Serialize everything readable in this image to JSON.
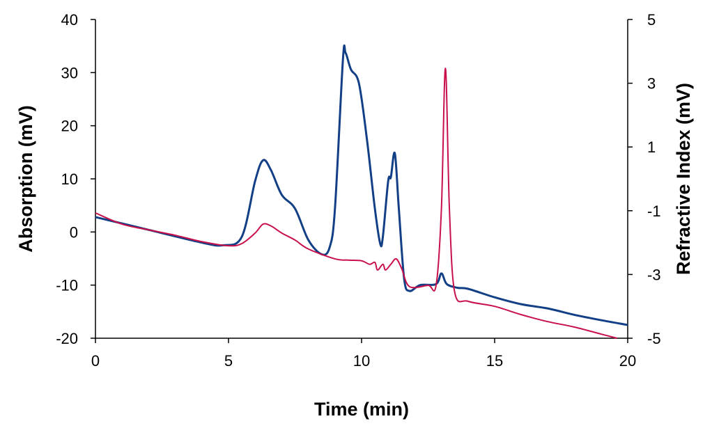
{
  "chart_data": {
    "type": "line",
    "title": "",
    "xlabel": "Time (min)",
    "ylabel": "Absorption (mV)",
    "y2label": "Refractive Index (mV)",
    "xlim": [
      0,
      20
    ],
    "ylim": [
      -20,
      40
    ],
    "y2lim": [
      -5,
      5
    ],
    "xticks": [
      0,
      5,
      10,
      15,
      20
    ],
    "yticks": [
      -20,
      -10,
      0,
      10,
      20,
      30,
      40
    ],
    "y2ticks": [
      -5,
      -3,
      -1,
      1,
      3,
      5
    ],
    "grid": false,
    "legend": "none",
    "series": [
      {
        "axis": "left",
        "color": "#123f85",
        "x": [
          0,
          2,
          4,
          4.8,
          5.5,
          6,
          6.3,
          6.6,
          7,
          7.5,
          8,
          8.5,
          8.8,
          9,
          9.3,
          9.4,
          9.6,
          9.9,
          10.2,
          10.5,
          10.7,
          10.8,
          11.0,
          11.1,
          11.25,
          11.4,
          11.6,
          11.8,
          12.2,
          12.8,
          13.0,
          13.2,
          13.6,
          14,
          15,
          16,
          17,
          18,
          19,
          20
        ],
        "y": [
          2.8,
          0.4,
          -2,
          -2.5,
          -0.9,
          9.6,
          13.5,
          11.6,
          7,
          4.4,
          -1.5,
          -4.2,
          -2.9,
          4.4,
          32.5,
          33.7,
          30.6,
          28,
          17.5,
          4.4,
          -2.2,
          -0.9,
          9.6,
          10.3,
          14.8,
          4.4,
          -8.8,
          -11.1,
          -10,
          -9.8,
          -7.8,
          -9.8,
          -10.5,
          -10.7,
          -12.3,
          -13.6,
          -14.4,
          -15.6,
          -16.6,
          -17.5
        ]
      },
      {
        "axis": "right",
        "color": "#c8104a",
        "x": [
          0,
          1,
          2,
          3,
          4,
          5,
          5.5,
          6,
          6.3,
          6.6,
          7,
          7.5,
          8,
          9,
          9.5,
          10,
          10.3,
          10.5,
          10.6,
          10.8,
          10.9,
          11.1,
          11.3,
          11.5,
          11.8,
          12.5,
          12.8,
          13.0,
          13.15,
          13.3,
          13.5,
          14,
          15,
          16,
          17,
          18,
          19,
          19.6
        ],
        "y": [
          -1.07,
          -1.42,
          -1.6,
          -1.77,
          -1.97,
          -2.1,
          -2.03,
          -1.7,
          -1.42,
          -1.48,
          -1.7,
          -1.92,
          -2.2,
          -2.51,
          -2.55,
          -2.57,
          -2.68,
          -2.62,
          -2.86,
          -2.68,
          -2.86,
          -2.68,
          -2.51,
          -2.8,
          -3.38,
          -3.34,
          -3.34,
          -0.94,
          3.47,
          -0.94,
          -3.56,
          -3.84,
          -4.0,
          -4.26,
          -4.48,
          -4.65,
          -4.87,
          -5.0
        ]
      }
    ]
  }
}
